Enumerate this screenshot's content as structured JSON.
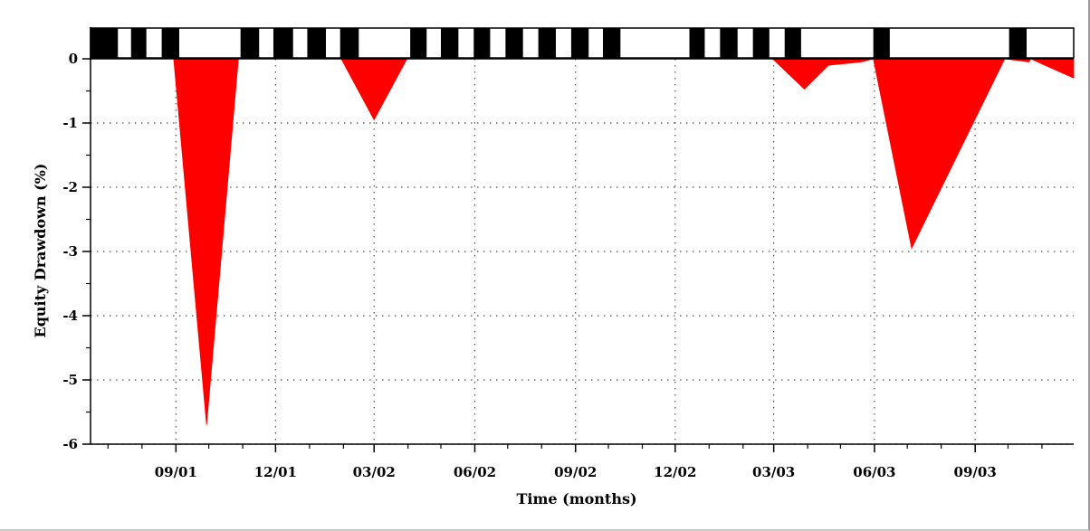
{
  "chart_data": {
    "type": "area",
    "title": "",
    "xlabel": "Time (months)",
    "ylabel": "Equity Drawdown (%)",
    "ylim": [
      -6,
      0.5
    ],
    "xlim": [
      "2001-06-15",
      "2003-11-30"
    ],
    "y_ticks": [
      "0",
      "-1",
      "-2",
      "-3",
      "-4",
      "-5",
      "-6"
    ],
    "x_ticks": [
      {
        "date": "2001-09-01",
        "label": "09/01"
      },
      {
        "date": "2001-12-01",
        "label": "12/01"
      },
      {
        "date": "2002-03-01",
        "label": "03/02"
      },
      {
        "date": "2002-06-01",
        "label": "06/02"
      },
      {
        "date": "2002-09-01",
        "label": "09/02"
      },
      {
        "date": "2002-12-01",
        "label": "12/02"
      },
      {
        "date": "2003-03-01",
        "label": "03/03"
      },
      {
        "date": "2003-06-01",
        "label": "06/03"
      },
      {
        "date": "2003-09-01",
        "label": "09/03"
      }
    ],
    "grid": true,
    "fill_color": "#ff0000",
    "series": [
      {
        "x": [
          "2001-06-15",
          "2001-08-30",
          "2001-09-29",
          "2001-10-28",
          "2001-11-02",
          "2002-01-30",
          "2002-03-01",
          "2002-03-31",
          "2002-04-03",
          "2003-02-28",
          "2003-03-29",
          "2003-04-20",
          "2003-05-20",
          "2003-05-31",
          "2003-07-05",
          "2003-09-28",
          "2003-10-20",
          "2003-10-22",
          "2003-11-01",
          "2003-11-30"
        ],
        "y": [
          0,
          0,
          -5.7,
          0,
          0,
          0,
          -0.95,
          0,
          0,
          0,
          -0.47,
          -0.1,
          -0.05,
          0,
          -2.95,
          0,
          -0.05,
          0,
          -0.08,
          -0.3
        ]
      }
    ],
    "regime_bar": {
      "segments": [
        {
          "start": "2001-06-15",
          "end": "2001-07-10",
          "value": "black"
        },
        {
          "start": "2001-07-22",
          "end": "2001-08-05",
          "value": "black"
        },
        {
          "start": "2001-08-19",
          "end": "2001-09-04",
          "value": "black"
        },
        {
          "start": "2001-10-30",
          "end": "2001-11-16",
          "value": "black"
        },
        {
          "start": "2001-11-29",
          "end": "2001-12-17",
          "value": "black"
        },
        {
          "start": "2001-12-30",
          "end": "2002-01-16",
          "value": "black"
        },
        {
          "start": "2002-01-29",
          "end": "2002-02-15",
          "value": "black"
        },
        {
          "start": "2002-04-03",
          "end": "2002-04-18",
          "value": "black"
        },
        {
          "start": "2002-05-01",
          "end": "2002-05-17",
          "value": "black"
        },
        {
          "start": "2002-05-31",
          "end": "2002-06-15",
          "value": "black"
        },
        {
          "start": "2002-06-29",
          "end": "2002-07-15",
          "value": "black"
        },
        {
          "start": "2002-07-29",
          "end": "2002-08-14",
          "value": "black"
        },
        {
          "start": "2002-08-28",
          "end": "2002-09-13",
          "value": "black"
        },
        {
          "start": "2002-09-26",
          "end": "2002-10-12",
          "value": "black"
        },
        {
          "start": "2002-12-14",
          "end": "2002-12-28",
          "value": "black"
        },
        {
          "start": "2003-01-11",
          "end": "2003-01-27",
          "value": "black"
        },
        {
          "start": "2003-02-10",
          "end": "2003-02-25",
          "value": "black"
        },
        {
          "start": "2003-03-11",
          "end": "2003-03-26",
          "value": "black"
        },
        {
          "start": "2003-05-31",
          "end": "2003-06-15",
          "value": "black"
        },
        {
          "start": "2003-10-02",
          "end": "2003-10-18",
          "value": "black"
        }
      ]
    }
  }
}
